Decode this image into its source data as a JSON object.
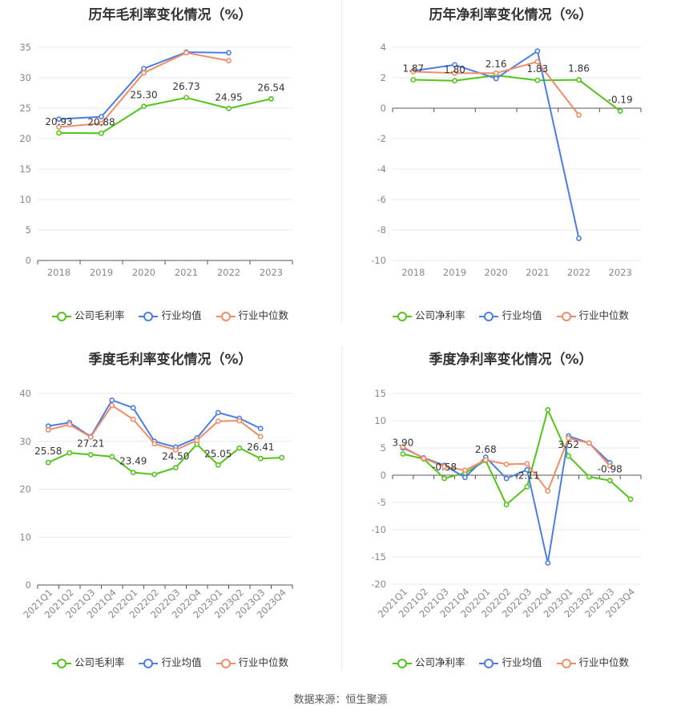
{
  "source": "数据来源：恒生聚源",
  "colors": {
    "company": "#52c41a",
    "industry_avg": "#4a7ee6",
    "industry_median": "#f08c67"
  },
  "chart_data": [
    {
      "id": "annual-gross",
      "type": "line",
      "title": "历年毛利率变化情况（%）",
      "categories": [
        "2018",
        "2019",
        "2020",
        "2021",
        "2022",
        "2023"
      ],
      "ylim": [
        0,
        35
      ],
      "yticks": [
        0,
        5,
        10,
        15,
        20,
        25,
        30,
        35
      ],
      "legend_position": "bottom",
      "series": [
        {
          "name": "公司毛利率",
          "values": [
            20.93,
            20.88,
            25.3,
            26.73,
            24.95,
            26.54
          ]
        },
        {
          "name": "行业均值",
          "values": [
            23.2,
            23.6,
            31.5,
            34.2,
            34.1,
            null
          ]
        },
        {
          "name": "行业中位数",
          "values": [
            21.9,
            22.5,
            30.8,
            34.1,
            32.8,
            null
          ]
        }
      ],
      "data_labels": [
        "20.93",
        "20.88",
        "25.30",
        "26.73",
        "24.95",
        "26.54"
      ]
    },
    {
      "id": "annual-net",
      "type": "line",
      "title": "历年净利率变化情况（%）",
      "categories": [
        "2018",
        "2019",
        "2020",
        "2021",
        "2022",
        "2023"
      ],
      "ylim": [
        -10,
        4
      ],
      "yticks": [
        -10,
        -8,
        -6,
        -4,
        -2,
        0,
        2,
        4
      ],
      "legend_position": "bottom",
      "series": [
        {
          "name": "公司净利率",
          "values": [
            1.87,
            1.8,
            2.16,
            1.83,
            1.86,
            -0.19
          ]
        },
        {
          "name": "行业均值",
          "values": [
            2.45,
            2.85,
            1.95,
            3.75,
            -8.55,
            null
          ]
        },
        {
          "name": "行业中位数",
          "values": [
            2.4,
            2.3,
            2.3,
            3.05,
            -0.45,
            null
          ]
        }
      ],
      "data_labels": [
        "1.87",
        "1.80",
        "2.16",
        "1.83",
        "1.86",
        "-0.19"
      ]
    },
    {
      "id": "quarter-gross",
      "type": "line",
      "title": "季度毛利率变化情况（%）",
      "categories": [
        "2021Q1",
        "2021Q2",
        "2021Q3",
        "2021Q4",
        "2022Q1",
        "2022Q2",
        "2022Q3",
        "2022Q4",
        "2023Q1",
        "2023Q2",
        "2023Q3",
        "2023Q4"
      ],
      "ylim": [
        0,
        40
      ],
      "yticks": [
        0,
        10,
        20,
        30,
        40
      ],
      "legend_position": "bottom",
      "series": [
        {
          "name": "公司毛利率",
          "values": [
            25.58,
            27.6,
            27.21,
            26.8,
            23.49,
            23.1,
            24.5,
            29.4,
            25.05,
            28.6,
            26.41,
            26.6
          ]
        },
        {
          "name": "行业均值",
          "values": [
            33.2,
            33.9,
            31.0,
            38.6,
            37.0,
            30.0,
            28.8,
            30.7,
            36.0,
            34.8,
            32.7,
            null
          ]
        },
        {
          "name": "行业中位数",
          "values": [
            32.4,
            33.5,
            30.9,
            37.5,
            34.6,
            29.5,
            28.2,
            30.2,
            34.2,
            34.3,
            31.0,
            null
          ]
        }
      ],
      "data_labels": [
        {
          "index": 0,
          "text": "25.58"
        },
        {
          "index": 2,
          "text": "27.21"
        },
        {
          "index": 4,
          "text": "23.49"
        },
        {
          "index": 6,
          "text": "24.50"
        },
        {
          "index": 8,
          "text": "25.05"
        },
        {
          "index": 10,
          "text": "26.41"
        }
      ]
    },
    {
      "id": "quarter-net",
      "type": "line",
      "title": "季度净利率变化情况（%）",
      "categories": [
        "2021Q1",
        "2021Q2",
        "2021Q3",
        "2021Q4",
        "2022Q1",
        "2022Q2",
        "2022Q3",
        "2022Q4",
        "2023Q1",
        "2023Q2",
        "2023Q3",
        "2023Q4"
      ],
      "ylim": [
        -20,
        15
      ],
      "yticks": [
        -20,
        -15,
        -10,
        -5,
        0,
        5,
        10,
        15
      ],
      "legend_position": "bottom",
      "series": [
        {
          "name": "公司净利率",
          "values": [
            3.9,
            3.0,
            -0.58,
            0.4,
            2.68,
            -5.4,
            -2.11,
            12.0,
            3.52,
            -0.3,
            -0.98,
            -4.4
          ]
        },
        {
          "name": "行业均值",
          "values": [
            5.0,
            3.2,
            1.8,
            -0.4,
            3.3,
            -0.6,
            1.0,
            -16.1,
            7.2,
            5.9,
            2.3,
            null
          ]
        },
        {
          "name": "行业中位数",
          "values": [
            5.2,
            3.1,
            1.6,
            0.9,
            2.8,
            2.0,
            2.1,
            -2.9,
            6.8,
            5.9,
            1.7,
            null
          ]
        }
      ],
      "data_labels": [
        {
          "index": 0,
          "text": "3.90"
        },
        {
          "index": 2,
          "text": "-0.58"
        },
        {
          "index": 4,
          "text": "2.68"
        },
        {
          "index": 6,
          "text": "-2.11"
        },
        {
          "index": 8,
          "text": "3.52"
        },
        {
          "index": 10,
          "text": "-0.98"
        }
      ]
    }
  ]
}
